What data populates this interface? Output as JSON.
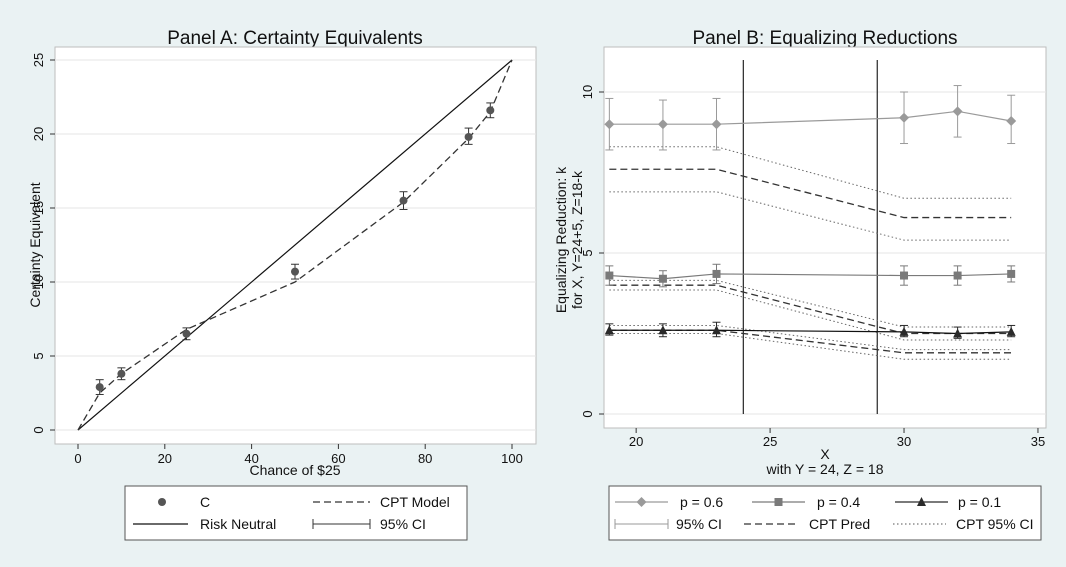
{
  "chart_data": [
    {
      "type": "scatter",
      "title": "Panel A: Certainty Equivalents",
      "xlabel": "Chance of $25",
      "ylabel": "Certainty Equivalent",
      "xlim": [
        0,
        100
      ],
      "ylim": [
        0,
        25
      ],
      "xticks": [
        0,
        20,
        40,
        60,
        80,
        100
      ],
      "yticks": [
        0,
        5,
        10,
        15,
        20,
        25
      ],
      "grid": "horizontal",
      "legend_placement": "bottom",
      "series": [
        {
          "name": "C",
          "kind": "points-with-ci",
          "x": [
            5,
            10,
            25,
            50,
            75,
            90,
            95
          ],
          "y": [
            2.9,
            3.8,
            6.5,
            10.7,
            15.5,
            19.8,
            21.6
          ],
          "ci_low": [
            2.4,
            3.4,
            6.1,
            10.2,
            14.9,
            19.3,
            21.1
          ],
          "ci_high": [
            3.4,
            4.2,
            6.9,
            11.2,
            16.1,
            20.4,
            22.1
          ]
        },
        {
          "name": "CPT Model",
          "kind": "dashed-line",
          "x": [
            0,
            5,
            10,
            25,
            50,
            75,
            90,
            95,
            100
          ],
          "y": [
            0,
            2.5,
            3.8,
            6.8,
            10.0,
            15.4,
            19.7,
            21.5,
            25
          ]
        },
        {
          "name": "Risk Neutral",
          "kind": "solid-line",
          "x": [
            0,
            100
          ],
          "y": [
            0,
            25
          ]
        },
        {
          "name": "95% CI",
          "kind": "ci-legend-only"
        }
      ]
    },
    {
      "type": "line",
      "title": "Panel B: Equalizing Reductions",
      "xlabel": "X",
      "xlabel2": "with Y = 24, Z = 18",
      "ylabel": "Equalizing Reduction: k",
      "ylabel2": "for X, Y=24+5, Z=18-k",
      "xlim": [
        18.8,
        35.3
      ],
      "ylim": [
        -0.3,
        11
      ],
      "xticks": [
        20,
        25,
        30,
        35
      ],
      "yticks": [
        0,
        5,
        10
      ],
      "vlines": [
        24,
        29
      ],
      "grid": "horizontal",
      "legend_placement": "bottom",
      "series": [
        {
          "name": "p = 0.6",
          "marker": "diamond",
          "color": "#9a9a9a",
          "x": [
            19,
            21,
            23,
            30,
            32,
            34
          ],
          "y": [
            9.0,
            9.0,
            9.0,
            9.2,
            9.4,
            9.1
          ],
          "ci_low": [
            8.2,
            8.2,
            8.2,
            8.4,
            8.6,
            8.4
          ],
          "ci_high": [
            9.8,
            9.75,
            9.8,
            10.0,
            10.2,
            9.9
          ]
        },
        {
          "name": "p = 0.4",
          "marker": "square",
          "color": "#7a7a7a",
          "x": [
            19,
            21,
            23,
            30,
            32,
            34
          ],
          "y": [
            4.3,
            4.2,
            4.35,
            4.3,
            4.3,
            4.35
          ],
          "ci_low": [
            4.0,
            3.95,
            4.05,
            4.0,
            4.0,
            4.1
          ],
          "ci_high": [
            4.6,
            4.45,
            4.65,
            4.6,
            4.6,
            4.6
          ]
        },
        {
          "name": "p = 0.1",
          "marker": "triangle",
          "color": "#2a2a2a",
          "x": [
            19,
            21,
            23,
            30,
            32,
            34
          ],
          "y": [
            2.6,
            2.6,
            2.6,
            2.55,
            2.5,
            2.55
          ],
          "ci_low": [
            2.45,
            2.4,
            2.4,
            2.4,
            2.35,
            2.4
          ],
          "ci_high": [
            2.8,
            2.8,
            2.85,
            2.75,
            2.7,
            2.75
          ]
        },
        {
          "name": "95% CI",
          "kind": "ci-legend-only"
        },
        {
          "name": "CPT Pred",
          "kind": "dashed-lines",
          "lines": [
            {
              "x": [
                19,
                23,
                30,
                34
              ],
              "y": [
                7.6,
                7.6,
                6.1,
                6.1
              ]
            },
            {
              "x": [
                19,
                23,
                30,
                34
              ],
              "y": [
                4.0,
                4.0,
                2.5,
                2.5
              ]
            },
            {
              "x": [
                19,
                23,
                30,
                34
              ],
              "y": [
                2.6,
                2.6,
                1.9,
                1.9
              ]
            }
          ]
        },
        {
          "name": "CPT 95% CI",
          "kind": "dotted-lines",
          "lines": [
            {
              "x": [
                19,
                23,
                30,
                34
              ],
              "y": [
                8.3,
                8.3,
                6.7,
                6.7
              ]
            },
            {
              "x": [
                19,
                23,
                30,
                34
              ],
              "y": [
                6.9,
                6.9,
                5.4,
                5.4
              ]
            },
            {
              "x": [
                19,
                23,
                30,
                34
              ],
              "y": [
                4.15,
                4.15,
                2.7,
                2.7
              ]
            },
            {
              "x": [
                19,
                23,
                30,
                34
              ],
              "y": [
                3.85,
                3.85,
                2.3,
                2.3
              ]
            },
            {
              "x": [
                19,
                23,
                30,
                34
              ],
              "y": [
                2.75,
                2.75,
                2.0,
                2.0
              ]
            },
            {
              "x": [
                19,
                23,
                30,
                34
              ],
              "y": [
                2.5,
                2.5,
                1.7,
                1.7
              ]
            }
          ]
        }
      ]
    }
  ]
}
